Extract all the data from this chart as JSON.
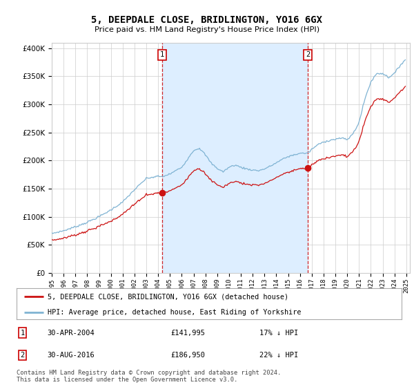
{
  "title": "5, DEEPDALE CLOSE, BRIDLINGTON, YO16 6GX",
  "subtitle": "Price paid vs. HM Land Registry's House Price Index (HPI)",
  "legend_line1": "5, DEEPDALE CLOSE, BRIDLINGTON, YO16 6GX (detached house)",
  "legend_line2": "HPI: Average price, detached house, East Riding of Yorkshire",
  "footnote": "Contains HM Land Registry data © Crown copyright and database right 2024.\nThis data is licensed under the Open Government Licence v3.0.",
  "transaction1_label": "1",
  "transaction1_date": "30-APR-2004",
  "transaction1_price": "£141,995",
  "transaction1_hpi": "17% ↓ HPI",
  "transaction1_x": 2004.33,
  "transaction1_y": 141995,
  "transaction2_label": "2",
  "transaction2_date": "30-AUG-2016",
  "transaction2_price": "£186,950",
  "transaction2_hpi": "22% ↓ HPI",
  "transaction2_x": 2016.67,
  "transaction2_y": 186950,
  "hpi_color": "#7fb3d3",
  "price_color": "#cc1111",
  "vline_color": "#cc0000",
  "shade_color": "#ddeeff",
  "background_color": "#ffffff",
  "grid_color": "#cccccc",
  "ylim": [
    0,
    410000
  ],
  "xlim": [
    1995.0,
    2025.3
  ],
  "yticks": [
    0,
    50000,
    100000,
    150000,
    200000,
    250000,
    300000,
    350000,
    400000
  ],
  "xticks": [
    1995,
    1996,
    1997,
    1998,
    1999,
    2000,
    2001,
    2002,
    2003,
    2004,
    2005,
    2006,
    2007,
    2008,
    2009,
    2010,
    2011,
    2012,
    2013,
    2014,
    2015,
    2016,
    2017,
    2018,
    2019,
    2020,
    2021,
    2022,
    2023,
    2024,
    2025
  ]
}
